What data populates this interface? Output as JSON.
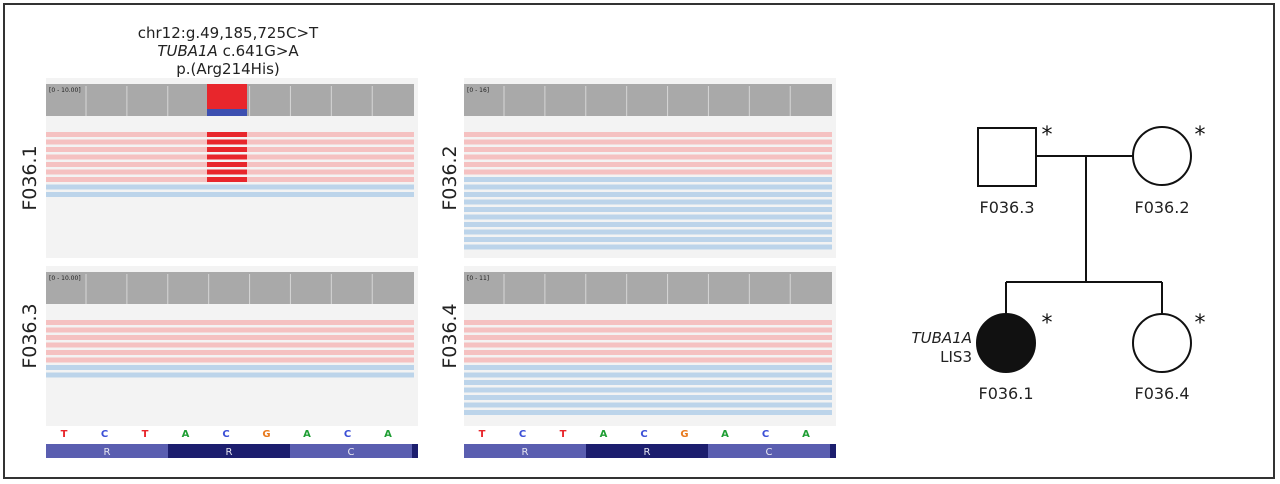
{
  "variant": {
    "line1": "chr12:g.49,185,725C>T",
    "gene": "TUBA1A",
    "cdna": " c.641G>A",
    "protein": "p.(Arg214His)"
  },
  "panels": [
    {
      "id": "F036.1",
      "range": "[0 - 10.00]",
      "pink_reads": 7,
      "blue_reads": 2,
      "variant_reads": 7
    },
    {
      "id": "F036.2",
      "range": "[0 - 16]",
      "pink_reads": 6,
      "blue_reads": 10,
      "variant_reads": 0
    },
    {
      "id": "F036.3",
      "range": "[0 - 10.00]",
      "pink_reads": 6,
      "blue_reads": 2,
      "variant_reads": 0
    },
    {
      "id": "F036.4",
      "range": "[0 - 11]",
      "pink_reads": 6,
      "blue_reads": 7,
      "variant_reads": 0
    }
  ],
  "sequence": [
    "T",
    "C",
    "T",
    "A",
    "C",
    "G",
    "A",
    "C",
    "A"
  ],
  "codons": [
    "R",
    "R",
    "C"
  ],
  "base_colors": {
    "T": "#e8262c",
    "C": "#3b4fd6",
    "A": "#1f9e34",
    "G": "#e87a1e"
  },
  "pedigree": {
    "father": "F036.3",
    "mother": "F036.2",
    "proband": "F036.1",
    "sibling": "F036.4",
    "proband_gene": "TUBA1A",
    "proband_label": "LIS3",
    "marker": "*"
  }
}
